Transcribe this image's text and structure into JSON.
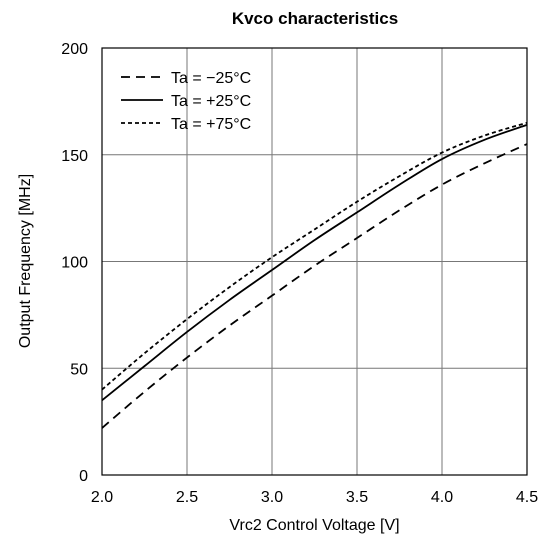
{
  "chart_data": {
    "type": "line",
    "title": "Kvco characteristics",
    "xlabel": "Vrc2 Control Voltage [V]",
    "ylabel": "Output Frequency [MHz]",
    "xlim": [
      2.0,
      4.5
    ],
    "ylim": [
      0,
      200
    ],
    "xticks": [
      "2.0",
      "2.5",
      "3.0",
      "3.5",
      "4.0",
      "4.5"
    ],
    "yticks": [
      "0",
      "50",
      "100",
      "150",
      "200"
    ],
    "grid": true,
    "legend_position": "top-left",
    "x": [
      2.0,
      2.25,
      2.5,
      2.75,
      3.0,
      3.25,
      3.5,
      3.75,
      4.0,
      4.25,
      4.5
    ],
    "series": [
      {
        "name": "Ta = −25°C",
        "dash": "dashed",
        "values": [
          22,
          39,
          55,
          70,
          84,
          98,
          111,
          124,
          136,
          146,
          155
        ]
      },
      {
        "name": "Ta = +25°C",
        "dash": "solid",
        "values": [
          35,
          51,
          67,
          82,
          96,
          110,
          123,
          136,
          148,
          157,
          164
        ]
      },
      {
        "name": "Ta = +75°C",
        "dash": "dotted",
        "values": [
          40,
          57,
          73,
          88,
          102,
          115,
          128,
          140,
          151,
          159,
          165
        ]
      }
    ]
  }
}
